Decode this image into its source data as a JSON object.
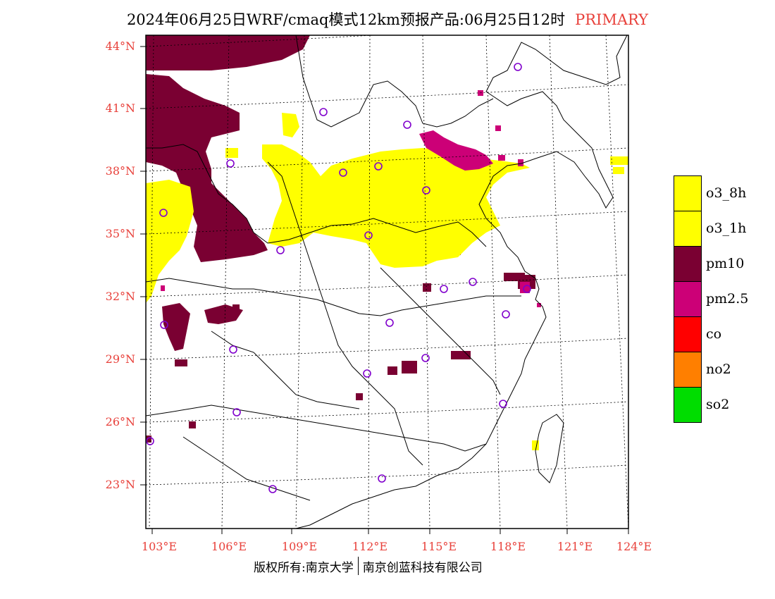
{
  "title": {
    "main": "2024年06月25日WRF/cmaq模式12km预报产品:06月25日12时",
    "tag": "PRIMARY",
    "tag_color": "#e8403a"
  },
  "axes": {
    "lat_labels": [
      "44°N",
      "41°N",
      "38°N",
      "35°N",
      "32°N",
      "29°N",
      "26°N",
      "23°N"
    ],
    "lon_labels": [
      "103°E",
      "106°E",
      "109°E",
      "112°E",
      "115°E",
      "118°E",
      "121°E",
      "124°E"
    ],
    "label_color": "#e8403a"
  },
  "legend": [
    {
      "label": "o3_8h",
      "color": "#ffff00"
    },
    {
      "label": "o3_1h",
      "color": "#ffff00"
    },
    {
      "label": "pm10",
      "color": "#7a0032"
    },
    {
      "label": "pm2.5",
      "color": "#cc0077"
    },
    {
      "label": "co",
      "color": "#ff0000"
    },
    {
      "label": "no2",
      "color": "#ff7f00"
    },
    {
      "label": "so2",
      "color": "#00dd00"
    }
  ],
  "footer": {
    "left": "版权所有:南京大学",
    "right": "南京创蓝科技有限公司"
  }
}
